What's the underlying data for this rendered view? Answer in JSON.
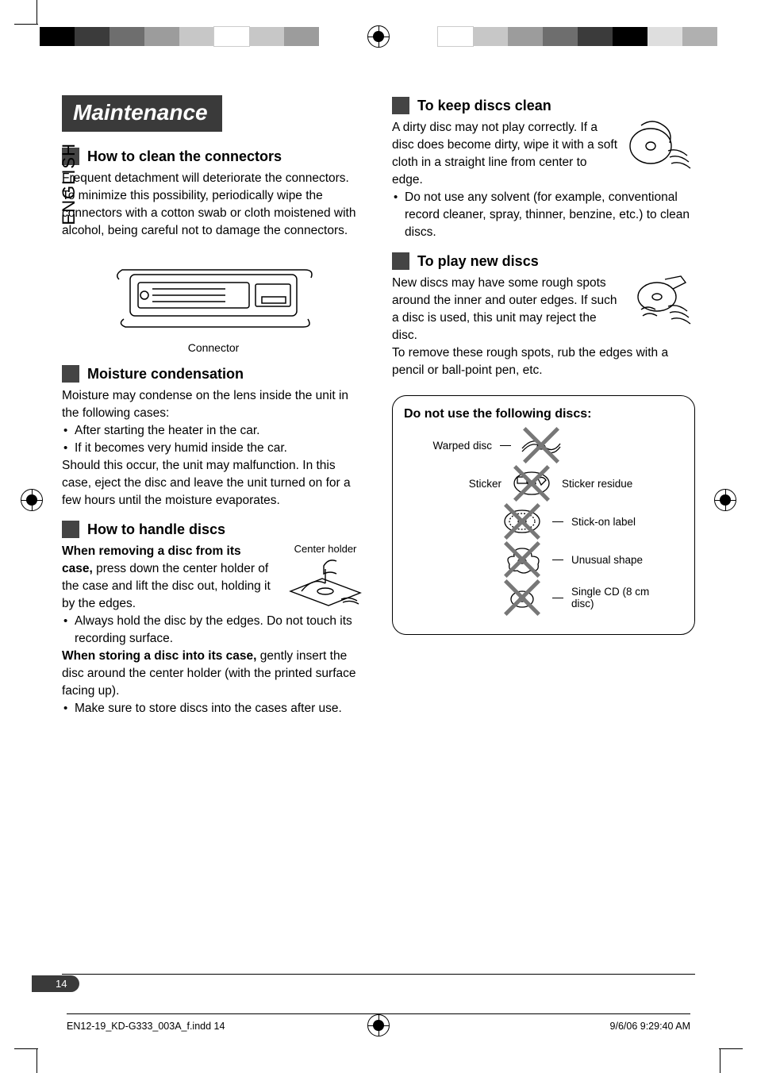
{
  "colorbar": {
    "left_colors": [
      "#000000",
      "#3b3b3b",
      "#6e6e6e",
      "#9c9c9c",
      "#c7c7c7",
      "#ffffff",
      "#c7c7c7",
      "#9c9c9c"
    ],
    "right_colors": [
      "#ffffff",
      "#c7c7c7",
      "#9c9c9c",
      "#6e6e6e",
      "#3b3b3b",
      "#000000",
      "#dedede",
      "#b0b0b0"
    ]
  },
  "language_tab": "ENGLISH",
  "title": "Maintenance",
  "left": {
    "s1": {
      "heading": "How to clean the connectors",
      "p1": "Frequent detachment will deteriorate the connectors. To minimize this possibility, periodically wipe the connectors with a cotton swab or cloth moistened with alcohol, being careful not to damage the connectors.",
      "caption": "Connector"
    },
    "s2": {
      "heading": "Moisture condensation",
      "p1": "Moisture may condense on the lens inside the unit in the following cases:",
      "b1": "After starting the heater in the car.",
      "b2": "If it becomes very humid inside the car.",
      "p2": "Should this occur, the unit may malfunction. In this case, eject the disc and leave the unit turned on for a few hours until the moisture evaporates."
    },
    "s3": {
      "heading": "How to handle discs",
      "p1a": "When removing a disc from its case,",
      "p1b": " press down the center holder of the case and lift the disc out, holding it by the edges.",
      "b1": "Always hold the disc by the edges. Do not touch its recording surface.",
      "p2a": "When storing a disc into its case,",
      "p2b": " gently insert the disc around the center holder (with the printed surface facing up).",
      "b2": "Make sure to store discs into the cases after use.",
      "fig_label": "Center holder"
    }
  },
  "right": {
    "s4": {
      "heading": "To keep discs clean",
      "p1": "A dirty disc may not play correctly. If a disc does become dirty, wipe it with a soft cloth in a straight line from center to edge.",
      "b1": "Do not use any solvent (for example, conventional record cleaner, spray, thinner, benzine, etc.) to clean discs."
    },
    "s5": {
      "heading": "To play new discs",
      "p1": "New discs may have some rough spots around the inner and outer edges. If such a disc is used, this unit may reject the disc.",
      "p2": "To remove these rough spots, rub the edges with a pencil or ball-point pen, etc."
    },
    "nobox": {
      "title": "Do not use the following discs:",
      "i1": "Warped disc",
      "i2a": "Sticker",
      "i2b": "Sticker residue",
      "i3": "Stick-on label",
      "i4": "Unusual shape",
      "i5": "Single CD (8 cm disc)"
    }
  },
  "page_number": "14",
  "footer": {
    "left": "EN12-19_KD-G333_003A_f.indd   14",
    "right": "9/6/06   9:29:40 AM"
  },
  "styles": {
    "banner_bg": "#3a3a3a",
    "section_square": "#444444",
    "cross_color": "#777777"
  }
}
